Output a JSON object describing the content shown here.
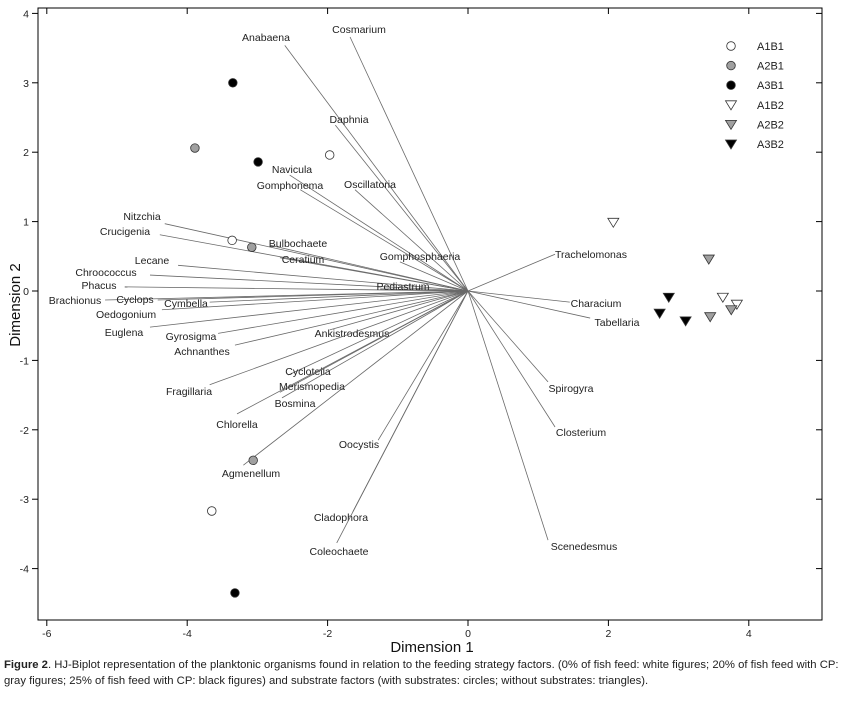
{
  "chart_data": {
    "type": "biplot",
    "xlabel": "Dimension 1",
    "ylabel": "Dimension 2",
    "xlim": [
      -6.15,
      5.0
    ],
    "ylim": [
      -4.7,
      4.1
    ],
    "xticks": [
      -6,
      -4,
      -2,
      0,
      2,
      4
    ],
    "yticks": [
      -4,
      -3,
      -2,
      -1,
      0,
      1,
      2,
      3,
      4
    ],
    "grid": false,
    "legend_position": "top-right",
    "legend": [
      {
        "name": "A1B1",
        "marker": "circle",
        "fill": "#ffffff"
      },
      {
        "name": "A2B1",
        "marker": "circle",
        "fill": "#a0a0a0"
      },
      {
        "name": "A3B1",
        "marker": "circle",
        "fill": "#000000"
      },
      {
        "name": "A1B2",
        "marker": "triangle-down",
        "fill": "#ffffff"
      },
      {
        "name": "A2B2",
        "marker": "triangle-down",
        "fill": "#a0a0a0"
      },
      {
        "name": "A3B2",
        "marker": "triangle-down",
        "fill": "#000000"
      }
    ],
    "series": [
      {
        "name": "A1B1",
        "points": [
          [
            -1.97,
            1.96
          ],
          [
            -3.36,
            0.73
          ],
          [
            -3.65,
            -3.17
          ]
        ]
      },
      {
        "name": "A2B1",
        "points": [
          [
            -3.89,
            2.06
          ],
          [
            -3.08,
            0.63
          ],
          [
            -3.06,
            -2.44
          ]
        ]
      },
      {
        "name": "A3B1",
        "points": [
          [
            -3.35,
            3.0
          ],
          [
            -2.99,
            1.86
          ],
          [
            -3.32,
            -4.35
          ]
        ]
      },
      {
        "name": "A1B2",
        "points": [
          [
            2.07,
            0.99
          ],
          [
            3.63,
            -0.09
          ],
          [
            3.83,
            -0.19
          ]
        ]
      },
      {
        "name": "A2B2",
        "points": [
          [
            3.43,
            0.46
          ],
          [
            3.45,
            -0.37
          ],
          [
            3.75,
            -0.27
          ]
        ]
      },
      {
        "name": "A3B2",
        "points": [
          [
            2.86,
            -0.09
          ],
          [
            2.73,
            -0.32
          ],
          [
            3.1,
            -0.43
          ]
        ]
      }
    ],
    "vectors": [
      {
        "label": "Anabaena",
        "x": -2.61,
        "y": 3.54
      },
      {
        "label": "Cosmarium",
        "x": -1.68,
        "y": 3.66
      },
      {
        "label": "Daphnia",
        "x": -1.89,
        "y": 2.39
      },
      {
        "label": "Navicula",
        "x": -2.54,
        "y": 1.67
      },
      {
        "label": "Gomphonema",
        "x": -2.39,
        "y": 1.46
      },
      {
        "label": "Oscillatoria",
        "x": -1.61,
        "y": 1.46
      },
      {
        "label": "Nitzchia",
        "x": -4.32,
        "y": 0.97
      },
      {
        "label": "Crucigenia",
        "x": -4.39,
        "y": 0.81
      },
      {
        "label": "Bulbochaete",
        "x": -2.82,
        "y": 0.66
      },
      {
        "label": "Ceratium",
        "x": -2.68,
        "y": 0.48
      },
      {
        "label": "Gomphosphaeria",
        "x": -0.97,
        "y": 0.42
      },
      {
        "label": "Lecane",
        "x": -4.13,
        "y": 0.37
      },
      {
        "label": "Chroococcus",
        "x": -4.53,
        "y": 0.23
      },
      {
        "label": "Phacus",
        "x": -4.89,
        "y": 0.06
      },
      {
        "label": "Pediastrum",
        "x": -1.25,
        "y": 0.03
      },
      {
        "label": "Brachionus",
        "x": -5.17,
        "y": -0.13
      },
      {
        "label": "Cyclops",
        "x": -4.42,
        "y": -0.13
      },
      {
        "label": "Cymbella",
        "x": -3.68,
        "y": -0.16
      },
      {
        "label": "Oedogonium",
        "x": -4.36,
        "y": -0.27
      },
      {
        "label": "Euglena",
        "x": -4.53,
        "y": -0.52
      },
      {
        "label": "Gyrosigma",
        "x": -3.56,
        "y": -0.61
      },
      {
        "label": "Achnanthes",
        "x": -3.32,
        "y": -0.78
      },
      {
        "label": "Ankistrodesmus",
        "x": -1.97,
        "y": -0.56
      },
      {
        "label": "Cyclotella",
        "x": -2.56,
        "y": -1.21
      },
      {
        "label": "Merismopedia",
        "x": -2.68,
        "y": -1.46
      },
      {
        "label": "Bosmina",
        "x": -2.65,
        "y": -1.54
      },
      {
        "label": "Fragillaria",
        "x": -3.68,
        "y": -1.35
      },
      {
        "label": "Chlorella",
        "x": -3.29,
        "y": -1.77
      },
      {
        "label": "Oocystis",
        "x": -1.28,
        "y": -2.15
      },
      {
        "label": "Agmenellum",
        "x": -3.2,
        "y": -2.51
      },
      {
        "label": "Cladophora",
        "x": -1.64,
        "y": -3.18
      },
      {
        "label": "Coleochaete",
        "x": -1.87,
        "y": -3.63
      },
      {
        "label": "Trachelomonas",
        "x": 1.24,
        "y": 0.53
      },
      {
        "label": "Characium",
        "x": 1.45,
        "y": -0.16
      },
      {
        "label": "Tabellaria",
        "x": 1.74,
        "y": -0.39
      },
      {
        "label": "Spirogyra",
        "x": 1.14,
        "y": -1.31
      },
      {
        "label": "Closterium",
        "x": 1.24,
        "y": -1.96
      },
      {
        "label": "Scenedesmus",
        "x": 1.14,
        "y": -3.59
      }
    ]
  },
  "caption": {
    "label": "Figure 2",
    "text": ". HJ-Biplot representation of the planktonic organisms found in relation to the feeding strategy factors. (0% of fish feed: white figures; 20% of fish feed with CP: gray figures; 25% of fish feed with CP: black figures) and substrate factors (with substrates: circles; without substrates: triangles)."
  }
}
